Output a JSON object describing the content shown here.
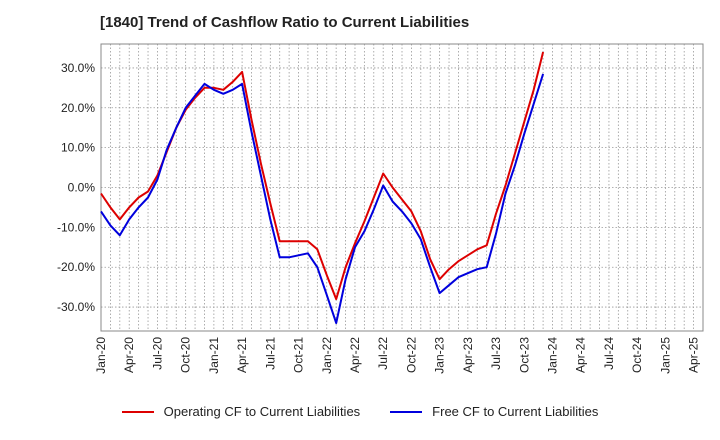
{
  "title": "[1840]  Trend of Cashflow Ratio to Current Liabilities",
  "chart_data": {
    "type": "line",
    "title": "[1840]  Trend of Cashflow Ratio to Current Liabilities",
    "xlabel": "",
    "ylabel": "",
    "ylim": [
      -36,
      36
    ],
    "yticks": [
      30,
      20,
      10,
      0,
      -10,
      -20,
      -30
    ],
    "ytick_labels": [
      "30.0%",
      "20.0%",
      "10.0%",
      "0.0%",
      "-10.0%",
      "-20.0%",
      "-30.0%"
    ],
    "xticks": [
      "Jan-20",
      "Apr-20",
      "Jul-20",
      "Oct-20",
      "Jan-21",
      "Apr-21",
      "Jul-21",
      "Oct-21",
      "Jan-22",
      "Apr-22",
      "Jul-22",
      "Oct-22",
      "Jan-23",
      "Apr-23",
      "Jul-23",
      "Oct-23",
      "Jan-24",
      "Apr-24",
      "Jul-24",
      "Oct-24",
      "Jan-25",
      "Apr-25"
    ],
    "x_months": 64,
    "grid": true,
    "legend_position": "bottom",
    "series": [
      {
        "name": "Operating CF to Current Liabilities",
        "color": "#dd0000",
        "points": [
          [
            0,
            -1.5
          ],
          [
            1,
            -5.0
          ],
          [
            2,
            -8.0
          ],
          [
            3,
            -5.0
          ],
          [
            4,
            -2.5
          ],
          [
            5,
            -1.0
          ],
          [
            6,
            3.0
          ],
          [
            7,
            9.0
          ],
          [
            8,
            15.0
          ],
          [
            9,
            19.5
          ],
          [
            10,
            22.5
          ],
          [
            11,
            25.0
          ],
          [
            12,
            25.0
          ],
          [
            13,
            24.5
          ],
          [
            14,
            26.5
          ],
          [
            15,
            29.0
          ],
          [
            16,
            17.0
          ],
          [
            17,
            6.0
          ],
          [
            18,
            -4.0
          ],
          [
            19,
            -13.5
          ],
          [
            20,
            -13.5
          ],
          [
            21,
            -13.5
          ],
          [
            22,
            -13.5
          ],
          [
            23,
            -15.5
          ],
          [
            24,
            -22.0
          ],
          [
            25,
            -28.0
          ],
          [
            26,
            -20.0
          ],
          [
            27,
            -14.0
          ],
          [
            28,
            -8.5
          ],
          [
            29,
            -2.5
          ],
          [
            30,
            3.5
          ],
          [
            31,
            0.0
          ],
          [
            32,
            -3.0
          ],
          [
            33,
            -6.0
          ],
          [
            34,
            -11.0
          ],
          [
            35,
            -18.0
          ],
          [
            36,
            -23.0
          ],
          [
            37,
            -20.5
          ],
          [
            38,
            -18.5
          ],
          [
            39,
            -17.0
          ],
          [
            40,
            -15.5
          ],
          [
            41,
            -14.5
          ],
          [
            42,
            -6.5
          ],
          [
            43,
            0.5
          ],
          [
            44,
            8.5
          ],
          [
            45,
            16.5
          ],
          [
            46,
            24.5
          ],
          [
            47,
            34.0
          ]
        ]
      },
      {
        "name": "Free CF to Current Liabilities",
        "color": "#0000dd",
        "points": [
          [
            0,
            -6.0
          ],
          [
            1,
            -9.5
          ],
          [
            2,
            -12.0
          ],
          [
            3,
            -8.0
          ],
          [
            4,
            -5.0
          ],
          [
            5,
            -2.5
          ],
          [
            6,
            2.0
          ],
          [
            7,
            9.5
          ],
          [
            8,
            15.0
          ],
          [
            9,
            20.0
          ],
          [
            10,
            23.0
          ],
          [
            11,
            26.0
          ],
          [
            12,
            24.5
          ],
          [
            13,
            23.5
          ],
          [
            14,
            24.5
          ],
          [
            15,
            26.0
          ],
          [
            16,
            14.0
          ],
          [
            17,
            3.0
          ],
          [
            18,
            -8.0
          ],
          [
            19,
            -17.5
          ],
          [
            20,
            -17.5
          ],
          [
            21,
            -17.0
          ],
          [
            22,
            -16.5
          ],
          [
            23,
            -20.0
          ],
          [
            24,
            -27.0
          ],
          [
            25,
            -34.0
          ],
          [
            26,
            -23.0
          ],
          [
            27,
            -15.0
          ],
          [
            28,
            -11.0
          ],
          [
            29,
            -5.5
          ],
          [
            30,
            0.5
          ],
          [
            31,
            -3.5
          ],
          [
            32,
            -6.0
          ],
          [
            33,
            -9.0
          ],
          [
            34,
            -13.0
          ],
          [
            35,
            -20.0
          ],
          [
            36,
            -26.5
          ],
          [
            37,
            -24.5
          ],
          [
            38,
            -22.5
          ],
          [
            39,
            -21.5
          ],
          [
            40,
            -20.5
          ],
          [
            41,
            -20.0
          ],
          [
            42,
            -11.5
          ],
          [
            43,
            -1.5
          ],
          [
            44,
            5.5
          ],
          [
            45,
            13.5
          ],
          [
            46,
            21.0
          ],
          [
            47,
            28.5
          ]
        ]
      }
    ]
  }
}
